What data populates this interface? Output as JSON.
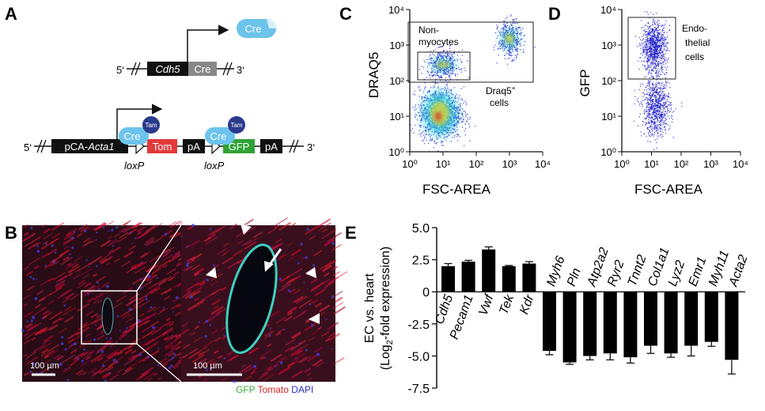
{
  "panels": {
    "A": {
      "label": "A",
      "cre_protein": "Cre",
      "construct1": {
        "five": "5‘",
        "three": "3‘",
        "gene": "Cdh5",
        "cre": "Cre"
      },
      "construct2": {
        "five": "5‘",
        "three": "3‘",
        "promoter_prefix": "pCA-",
        "promoter_gene": "Acta1",
        "tom": "Tom",
        "pa1": "pA",
        "gfp": "GFP",
        "pa2": "pA",
        "loxp1": "loxP",
        "loxp2": "loxP",
        "cre": "Cre",
        "tam": "Tam"
      },
      "colors": {
        "cre_bubble": "#6cc3ec",
        "tam_circle": "#2a3a8c",
        "tom_box": "#e23a3a",
        "gfp_box": "#2fa236",
        "cre_box": "#888888",
        "block": "#111111"
      }
    },
    "B": {
      "label": "B",
      "scale_left": "100 µm",
      "scale_right": "100 µm",
      "legend": [
        {
          "text": "GFP",
          "color": "#3aa83a"
        },
        {
          "text": "Tomato",
          "color": "#e02020"
        },
        {
          "text": "DAPI",
          "color": "#2a2ad0"
        }
      ]
    },
    "C": {
      "label": "C",
      "xlabel": "FSC-AREA",
      "ylabel": "DRAQ5",
      "gate1": [
        "Non-",
        "myocytes"
      ],
      "gate2": [
        "Draq5",
        "cells"
      ],
      "gate2_sup": "+"
    },
    "D": {
      "label": "D",
      "xlabel": "FSC-AREA",
      "ylabel": "GFP",
      "gate": [
        "Endo-",
        "thelial",
        "cells"
      ]
    },
    "E": {
      "label": "E",
      "ylabel_line1": "EC vs. heart",
      "ylabel_line2_pre": "(Log",
      "ylabel_line2_sub": "2",
      "ylabel_line2_post": "-fold expression)"
    }
  },
  "chart_data": [
    {
      "type": "scatter",
      "panel": "C",
      "xlabel": "FSC-AREA",
      "ylabel": "DRAQ5",
      "xscale": "log",
      "yscale": "log",
      "xlim": [
        1,
        10000
      ],
      "ylim": [
        1,
        10000
      ],
      "xticks": [
        "10⁰",
        "10¹",
        "10²",
        "10³",
        "10⁴"
      ],
      "yticks": [
        "10⁰",
        "10¹",
        "10²",
        "10³",
        "10⁴"
      ],
      "populations": [
        {
          "center": [
            8,
            12
          ],
          "spread": 0.35
        },
        {
          "center": [
            10,
            280
          ],
          "spread": 0.2
        },
        {
          "center": [
            1000,
            1500
          ],
          "spread": 0.25
        }
      ],
      "gates": [
        "Non-myocytes",
        "Draq5+ cells"
      ]
    },
    {
      "type": "scatter",
      "panel": "D",
      "xlabel": "FSC-AREA",
      "ylabel": "GFP",
      "xscale": "log",
      "yscale": "log",
      "xlim": [
        1,
        10000
      ],
      "ylim": [
        1,
        10000
      ],
      "xticks": [
        "10⁰",
        "10¹",
        "10²",
        "10³",
        "10⁴"
      ],
      "yticks": [
        "10⁰",
        "10¹",
        "10²",
        "10³",
        "10⁴"
      ],
      "populations": [
        {
          "center": [
            12,
            900
          ],
          "spread": 0.35
        },
        {
          "center": [
            14,
            18
          ],
          "spread": 0.4
        }
      ],
      "gates": [
        "Endothelial cells"
      ]
    },
    {
      "type": "bar",
      "panel": "E",
      "ylim": [
        -7.5,
        5.0
      ],
      "yticks": [
        "5.0",
        "2.5",
        "0",
        "-2.5",
        "-5.0",
        "-7.5"
      ],
      "ytick_values": [
        5.0,
        2.5,
        0,
        -2.5,
        -5.0,
        -7.5
      ],
      "categories": [
        "Cdh5",
        "Pecam1",
        "Vwf",
        "Tek",
        "Kdr",
        "Myh6",
        "Pln",
        "Atp2a2",
        "Ryr2",
        "Tnnt2",
        "Col1a1",
        "Lyz2",
        "Emr1",
        "Myh11",
        "Acta2"
      ],
      "values": [
        2.0,
        2.35,
        3.3,
        2.0,
        2.2,
        -4.6,
        -5.5,
        -5.0,
        -4.8,
        -5.1,
        -4.2,
        -4.8,
        -4.2,
        -3.9,
        -5.3
      ],
      "errors": [
        0.2,
        0.1,
        0.2,
        0.05,
        0.15,
        0.3,
        0.15,
        0.3,
        0.5,
        0.45,
        0.6,
        0.3,
        0.8,
        0.35,
        1.1
      ],
      "color": "#000000"
    }
  ]
}
